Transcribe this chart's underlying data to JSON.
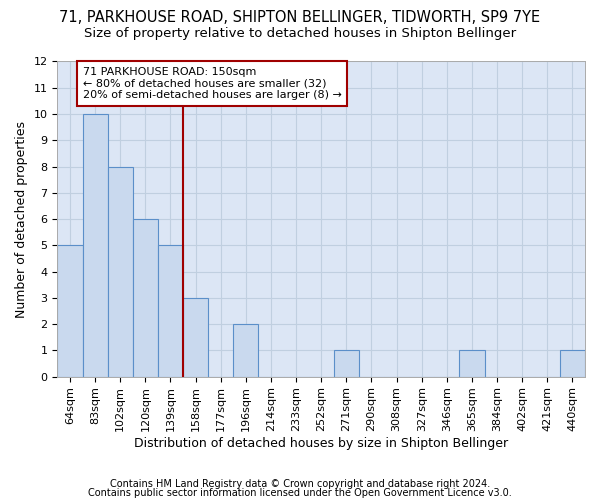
{
  "title": "71, PARKHOUSE ROAD, SHIPTON BELLINGER, TIDWORTH, SP9 7YE",
  "subtitle": "Size of property relative to detached houses in Shipton Bellinger",
  "xlabel": "Distribution of detached houses by size in Shipton Bellinger",
  "ylabel": "Number of detached properties",
  "categories": [
    "64sqm",
    "83sqm",
    "102sqm",
    "120sqm",
    "139sqm",
    "158sqm",
    "177sqm",
    "196sqm",
    "214sqm",
    "233sqm",
    "252sqm",
    "271sqm",
    "290sqm",
    "308sqm",
    "327sqm",
    "346sqm",
    "365sqm",
    "384sqm",
    "402sqm",
    "421sqm",
    "440sqm"
  ],
  "values": [
    5,
    10,
    8,
    6,
    5,
    3,
    0,
    2,
    0,
    0,
    0,
    1,
    0,
    0,
    0,
    0,
    1,
    0,
    0,
    0,
    1
  ],
  "bar_color": "#c9d9ee",
  "bar_edge_color": "#5b8fc9",
  "vline_x_index": 5.0,
  "vline_color": "#a00000",
  "annotation_text": "71 PARKHOUSE ROAD: 150sqm\n← 80% of detached houses are smaller (32)\n20% of semi-detached houses are larger (8) →",
  "annotation_box_color": "#a00000",
  "ylim": [
    0,
    12
  ],
  "yticks": [
    0,
    1,
    2,
    3,
    4,
    5,
    6,
    7,
    8,
    9,
    10,
    11,
    12
  ],
  "footer1": "Contains HM Land Registry data © Crown copyright and database right 2024.",
  "footer2": "Contains public sector information licensed under the Open Government Licence v3.0.",
  "bg_color": "#dce6f5",
  "grid_color": "#c0cfe0",
  "title_fontsize": 10.5,
  "subtitle_fontsize": 9.5,
  "xlabel_fontsize": 9,
  "ylabel_fontsize": 9,
  "tick_fontsize": 8,
  "annotation_fontsize": 8,
  "footer_fontsize": 7
}
